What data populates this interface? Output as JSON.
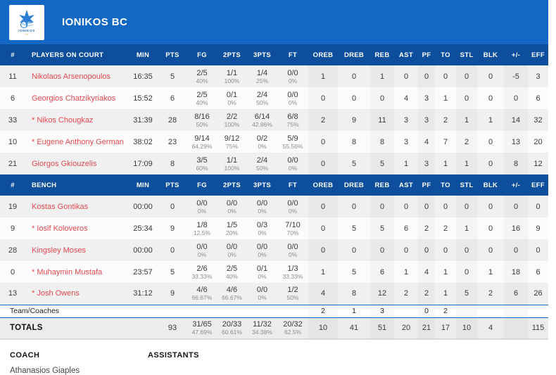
{
  "colors": {
    "accent": "#1268c3",
    "header_blue": "#0e4f9d",
    "player_red": "#e0494f"
  },
  "header": {
    "team_name": "IONIKOS BC",
    "logo_text": "IONIKOS"
  },
  "table": {
    "columns": [
      "#",
      "PLAYERS ON COURT",
      "MIN",
      "PTS",
      "FG",
      "2PTS",
      "3PTS",
      "FT",
      "OREB",
      "DREB",
      "REB",
      "AST",
      "PF",
      "TO",
      "STL",
      "BLK",
      "+/-",
      "EFF"
    ],
    "bench_label": "BENCH",
    "on_court": [
      {
        "num": "11",
        "name": "Nikolaos Arsenopoulos",
        "starter": false,
        "stats": {
          "min": "16:35",
          "pts": "5",
          "fg": [
            "2/5",
            "40%"
          ],
          "p2": [
            "1/1",
            "100%"
          ],
          "p3": [
            "1/4",
            "25%"
          ],
          "ft": [
            "0/0",
            "0%"
          ],
          "oreb": "1",
          "dreb": "0",
          "reb": "1",
          "ast": "0",
          "pf": "0",
          "to": "0",
          "stl": "0",
          "blk": "0",
          "pm": "-5",
          "eff": "3"
        }
      },
      {
        "num": "6",
        "name": "Georgios Chatzikyriakos",
        "starter": false,
        "stats": {
          "min": "15:52",
          "pts": "6",
          "fg": [
            "2/5",
            "40%"
          ],
          "p2": [
            "0/1",
            "0%"
          ],
          "p3": [
            "2/4",
            "50%"
          ],
          "ft": [
            "0/0",
            "0%"
          ],
          "oreb": "0",
          "dreb": "0",
          "reb": "0",
          "ast": "4",
          "pf": "3",
          "to": "1",
          "stl": "0",
          "blk": "0",
          "pm": "0",
          "eff": "6"
        }
      },
      {
        "num": "33",
        "name": "Nikos Chougkaz",
        "starter": true,
        "stats": {
          "min": "31:39",
          "pts": "28",
          "fg": [
            "8/16",
            "50%"
          ],
          "p2": [
            "2/2",
            "100%"
          ],
          "p3": [
            "6/14",
            "42.86%"
          ],
          "ft": [
            "6/8",
            "75%"
          ],
          "oreb": "2",
          "dreb": "9",
          "reb": "11",
          "ast": "3",
          "pf": "3",
          "to": "2",
          "stl": "1",
          "blk": "1",
          "pm": "14",
          "eff": "32"
        }
      },
      {
        "num": "10",
        "name": "Eugene Anthony German",
        "starter": true,
        "stats": {
          "min": "38:02",
          "pts": "23",
          "fg": [
            "9/14",
            "64.29%"
          ],
          "p2": [
            "9/12",
            "75%"
          ],
          "p3": [
            "0/2",
            "0%"
          ],
          "ft": [
            "5/9",
            "55.56%"
          ],
          "oreb": "0",
          "dreb": "8",
          "reb": "8",
          "ast": "3",
          "pf": "4",
          "to": "7",
          "stl": "2",
          "blk": "0",
          "pm": "13",
          "eff": "20"
        }
      },
      {
        "num": "21",
        "name": "Giorgos Gkiouzelis",
        "starter": false,
        "stats": {
          "min": "17:09",
          "pts": "8",
          "fg": [
            "3/5",
            "60%"
          ],
          "p2": [
            "1/1",
            "100%"
          ],
          "p3": [
            "2/4",
            "50%"
          ],
          "ft": [
            "0/0",
            "0%"
          ],
          "oreb": "0",
          "dreb": "5",
          "reb": "5",
          "ast": "1",
          "pf": "3",
          "to": "1",
          "stl": "1",
          "blk": "0",
          "pm": "8",
          "eff": "12"
        }
      }
    ],
    "bench": [
      {
        "num": "19",
        "name": "Kostas Gontikas",
        "starter": false,
        "stats": {
          "min": "00:00",
          "pts": "0",
          "fg": [
            "0/0",
            "0%"
          ],
          "p2": [
            "0/0",
            "0%"
          ],
          "p3": [
            "0/0",
            "0%"
          ],
          "ft": [
            "0/0",
            "0%"
          ],
          "oreb": "0",
          "dreb": "0",
          "reb": "0",
          "ast": "0",
          "pf": "0",
          "to": "0",
          "stl": "0",
          "blk": "0",
          "pm": "0",
          "eff": "0"
        }
      },
      {
        "num": "9",
        "name": "Iosif Koloveros",
        "starter": true,
        "stats": {
          "min": "25:34",
          "pts": "9",
          "fg": [
            "1/8",
            "12.5%"
          ],
          "p2": [
            "1/5",
            "20%"
          ],
          "p3": [
            "0/3",
            "0%"
          ],
          "ft": [
            "7/10",
            "70%"
          ],
          "oreb": "0",
          "dreb": "5",
          "reb": "5",
          "ast": "6",
          "pf": "2",
          "to": "2",
          "stl": "1",
          "blk": "0",
          "pm": "16",
          "eff": "9"
        }
      },
      {
        "num": "28",
        "name": "Kingsley Moses",
        "starter": false,
        "stats": {
          "min": "00:00",
          "pts": "0",
          "fg": [
            "0/0",
            "0%"
          ],
          "p2": [
            "0/0",
            "0%"
          ],
          "p3": [
            "0/0",
            "0%"
          ],
          "ft": [
            "0/0",
            "0%"
          ],
          "oreb": "0",
          "dreb": "0",
          "reb": "0",
          "ast": "0",
          "pf": "0",
          "to": "0",
          "stl": "0",
          "blk": "0",
          "pm": "0",
          "eff": "0"
        }
      },
      {
        "num": "0",
        "name": "Muhaymin Mustafa",
        "starter": true,
        "stats": {
          "min": "23:57",
          "pts": "5",
          "fg": [
            "2/6",
            "33.33%"
          ],
          "p2": [
            "2/5",
            "40%"
          ],
          "p3": [
            "0/1",
            "0%"
          ],
          "ft": [
            "1/3",
            "33.33%"
          ],
          "oreb": "1",
          "dreb": "5",
          "reb": "6",
          "ast": "1",
          "pf": "4",
          "to": "1",
          "stl": "0",
          "blk": "1",
          "pm": "18",
          "eff": "6"
        }
      },
      {
        "num": "13",
        "name": "Josh Owens",
        "starter": true,
        "stats": {
          "min": "31:12",
          "pts": "9",
          "fg": [
            "4/6",
            "66.67%"
          ],
          "p2": [
            "4/6",
            "66.67%"
          ],
          "p3": [
            "0/0",
            "0%"
          ],
          "ft": [
            "1/2",
            "50%"
          ],
          "oreb": "4",
          "dreb": "8",
          "reb": "12",
          "ast": "2",
          "pf": "2",
          "to": "1",
          "stl": "5",
          "blk": "2",
          "pm": "6",
          "eff": "26"
        }
      }
    ],
    "team_row": {
      "label": "Team/Coaches",
      "stats": {
        "min": "",
        "pts": "",
        "fg": "",
        "p2": "",
        "p3": "",
        "ft": "",
        "oreb": "2",
        "dreb": "1",
        "reb": "3",
        "ast": "",
        "pf": "0",
        "to": "2",
        "stl": "",
        "blk": "",
        "pm": "",
        "eff": ""
      }
    },
    "totals": {
      "label": "TOTALS",
      "stats": {
        "min": "",
        "pts": "93",
        "fg": [
          "31/65",
          "47.69%"
        ],
        "p2": [
          "20/33",
          "60.61%"
        ],
        "p3": [
          "11/32",
          "34.38%"
        ],
        "ft": [
          "20/32",
          "62.5%"
        ],
        "oreb": "10",
        "dreb": "41",
        "reb": "51",
        "ast": "20",
        "pf": "21",
        "to": "17",
        "stl": "10",
        "blk": "4",
        "pm": "",
        "eff": "115"
      }
    }
  },
  "footer": {
    "coach_label": "COACH",
    "assistants_label": "ASSISTANTS",
    "coach_name": "Athanasios Giaples"
  }
}
